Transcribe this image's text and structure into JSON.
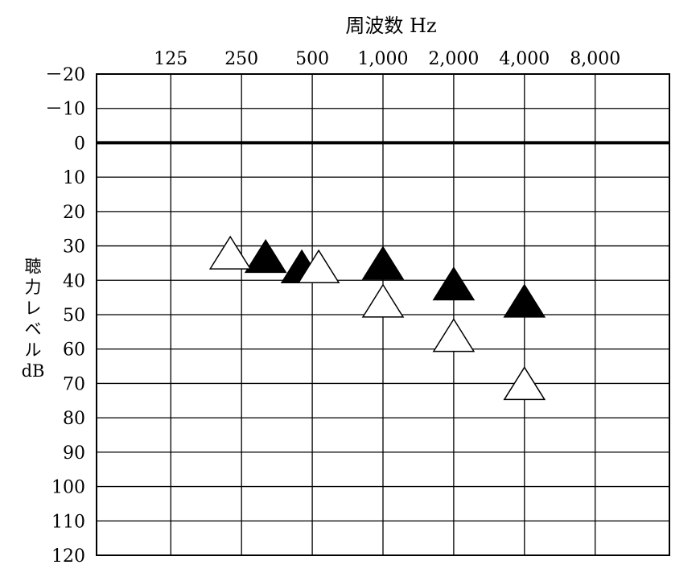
{
  "chart_data": {
    "type": "scatter",
    "title": "周波数 Hz",
    "xlabel": "周波数 Hz",
    "ylabel_lines": [
      "聴",
      "力",
      "レ",
      "ベ",
      "ル",
      "dB"
    ],
    "x_tick_labels": [
      "125",
      "250",
      "500",
      "1,000",
      "2,000",
      "4,000",
      "8,000"
    ],
    "x_values": [
      125,
      250,
      500,
      1000,
      2000,
      4000,
      8000
    ],
    "x_scale": "log2",
    "y_tick_labels": [
      "－20",
      "－10",
      "0",
      "10",
      "20",
      "30",
      "40",
      "50",
      "60",
      "70",
      "80",
      "90",
      "100",
      "110",
      "120"
    ],
    "ylim": [
      -20,
      120
    ],
    "y_inverted": true,
    "grid": true,
    "emphasized_y": 0,
    "series": [
      {
        "marker": "filled-triangle",
        "color": "#000000",
        "points": [
          {
            "x": 250,
            "y": 33
          },
          {
            "x": 500,
            "y": 36
          },
          {
            "x": 1000,
            "y": 35
          },
          {
            "x": 2000,
            "y": 41
          },
          {
            "x": 4000,
            "y": 46
          }
        ]
      },
      {
        "marker": "open-triangle",
        "color": "#ffffff",
        "points": [
          {
            "x": 250,
            "y": 32
          },
          {
            "x": 500,
            "y": 36
          },
          {
            "x": 1000,
            "y": 46
          },
          {
            "x": 2000,
            "y": 56
          },
          {
            "x": 4000,
            "y": 70
          }
        ]
      }
    ]
  }
}
